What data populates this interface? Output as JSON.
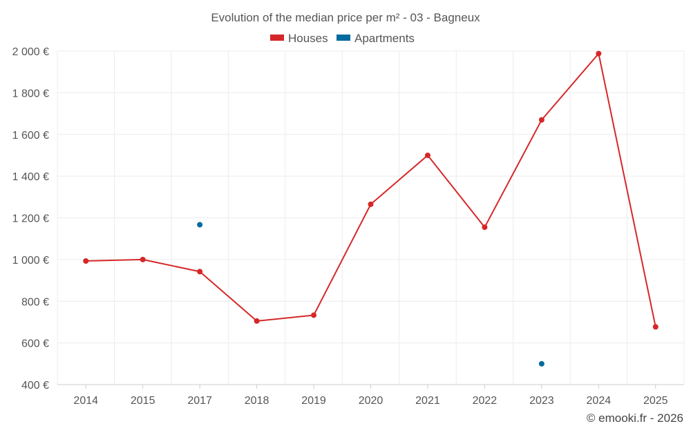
{
  "chart_data": {
    "type": "line",
    "title": "Evolution of the median price per m² - 03 - Bagneux",
    "categories": [
      "2014",
      "2015",
      "2017",
      "2018",
      "2019",
      "2020",
      "2021",
      "2022",
      "2023",
      "2024",
      "2025"
    ],
    "yticks": [
      "400 €",
      "600 €",
      "800 €",
      "1 000 €",
      "1 200 €",
      "1 400 €",
      "1 600 €",
      "1 800 €",
      "2 000 €"
    ],
    "ylim": [
      400,
      2000
    ],
    "ytick_values": [
      400,
      600,
      800,
      1000,
      1200,
      1400,
      1600,
      1800,
      2000
    ],
    "grid": true,
    "legend_position": "top-center",
    "series": [
      {
        "name": "Houses",
        "color": "#d62728",
        "values": [
          993,
          1000,
          942,
          705,
          733,
          1265,
          1500,
          1155,
          1670,
          1988,
          677
        ]
      },
      {
        "name": "Apartments",
        "color": "#006b9e",
        "values": [
          null,
          null,
          1167,
          null,
          null,
          null,
          null,
          null,
          500,
          null,
          null
        ]
      }
    ]
  },
  "credit": "© emooki.fr - 2026"
}
